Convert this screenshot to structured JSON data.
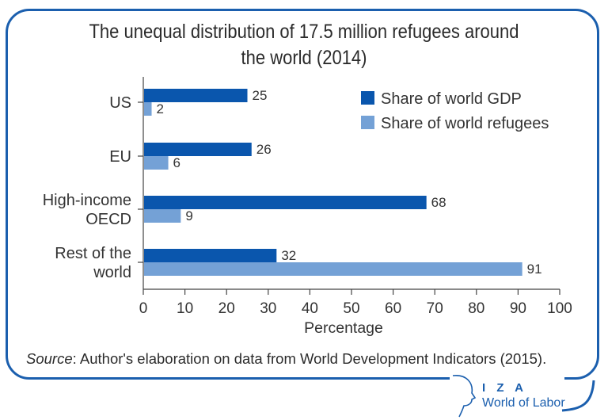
{
  "chart_data": {
    "type": "bar",
    "orientation": "horizontal",
    "title": "The unequal distribution of 17.5 million refugees around the world (2014)",
    "title_lines": [
      "The unequal distribution of 17.5 million refugees around",
      "the world (2014)"
    ],
    "categories": [
      "US",
      "EU",
      "High-income OECD",
      "Rest of the world"
    ],
    "category_lines": [
      [
        "US"
      ],
      [
        "EU"
      ],
      [
        "High-income",
        "OECD"
      ],
      [
        "Rest of the",
        "world"
      ]
    ],
    "series": [
      {
        "name": "Share of world GDP",
        "color": "#0a56ad",
        "values": [
          25,
          26,
          68,
          32
        ]
      },
      {
        "name": "Share of world refugees",
        "color": "#74a1d6",
        "values": [
          2,
          6,
          9,
          91
        ]
      }
    ],
    "xlabel": "Percentage",
    "ylabel": "",
    "xlim": [
      0,
      100
    ],
    "xticks": [
      0,
      10,
      20,
      30,
      40,
      50,
      60,
      70,
      80,
      90,
      100
    ],
    "grid": false,
    "legend_position": "top-right",
    "data_labels": true
  },
  "source": {
    "label": "Source",
    "text": ": Author's elaboration on data from World Development Indicators (2015)."
  },
  "logo": {
    "line1": "I Z A",
    "line2": "World of Labor"
  },
  "colors": {
    "frame": "#1b5fae",
    "gdp": "#0a56ad",
    "refugees": "#74a1d6"
  }
}
